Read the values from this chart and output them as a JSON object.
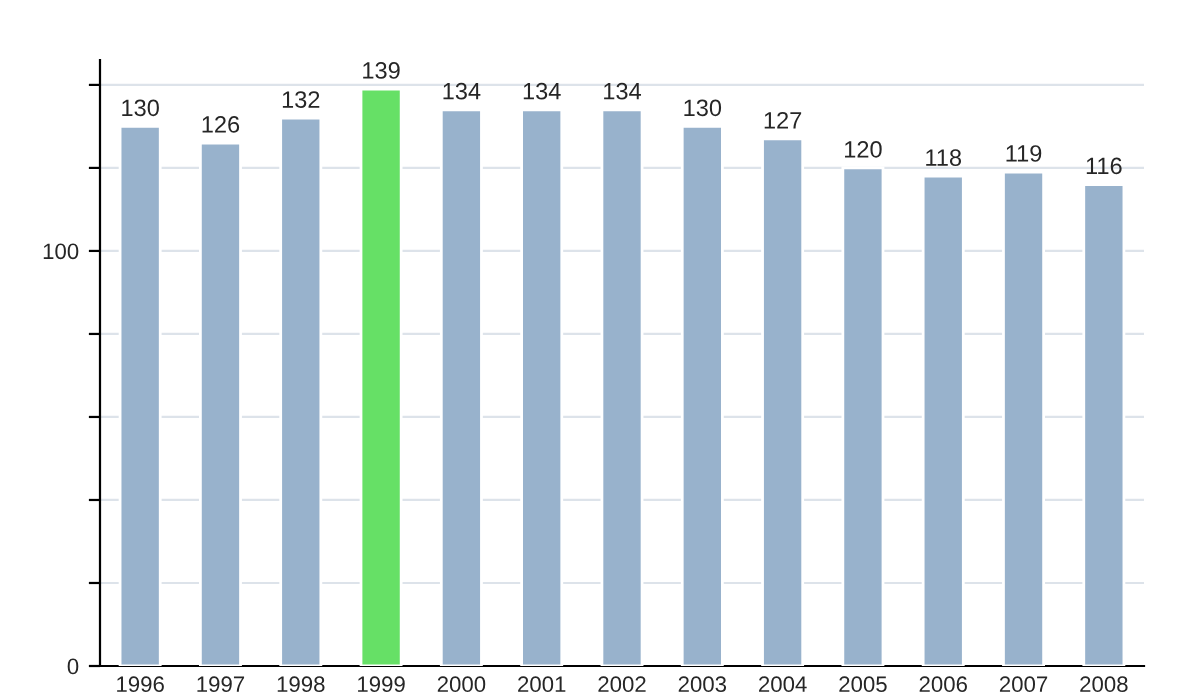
{
  "chart_data": {
    "type": "bar",
    "categories": [
      "1996",
      "1997",
      "1998",
      "1999",
      "2000",
      "2001",
      "2002",
      "2003",
      "2004",
      "2005",
      "2006",
      "2007",
      "2008"
    ],
    "values": [
      130,
      126,
      132,
      139,
      134,
      134,
      134,
      130,
      127,
      120,
      118,
      119,
      116
    ],
    "colors": [
      "#98b2cc",
      "#98b2cc",
      "#98b2cc",
      "#66e066",
      "#98b2cc",
      "#98b2cc",
      "#98b2cc",
      "#98b2cc",
      "#98b2cc",
      "#98b2cc",
      "#98b2cc",
      "#98b2cc",
      "#98b2cc"
    ],
    "ylim": [
      0,
      146
    ],
    "yticks": [
      0,
      {
        "value": 20,
        "label": null
      },
      {
        "value": 40,
        "label": null
      },
      {
        "value": 60,
        "label": null
      },
      {
        "value": 80,
        "label": null
      },
      100,
      {
        "value": 120,
        "label": null
      },
      {
        "value": 140,
        "label": null
      }
    ],
    "grid": "y",
    "data_labels": true
  }
}
